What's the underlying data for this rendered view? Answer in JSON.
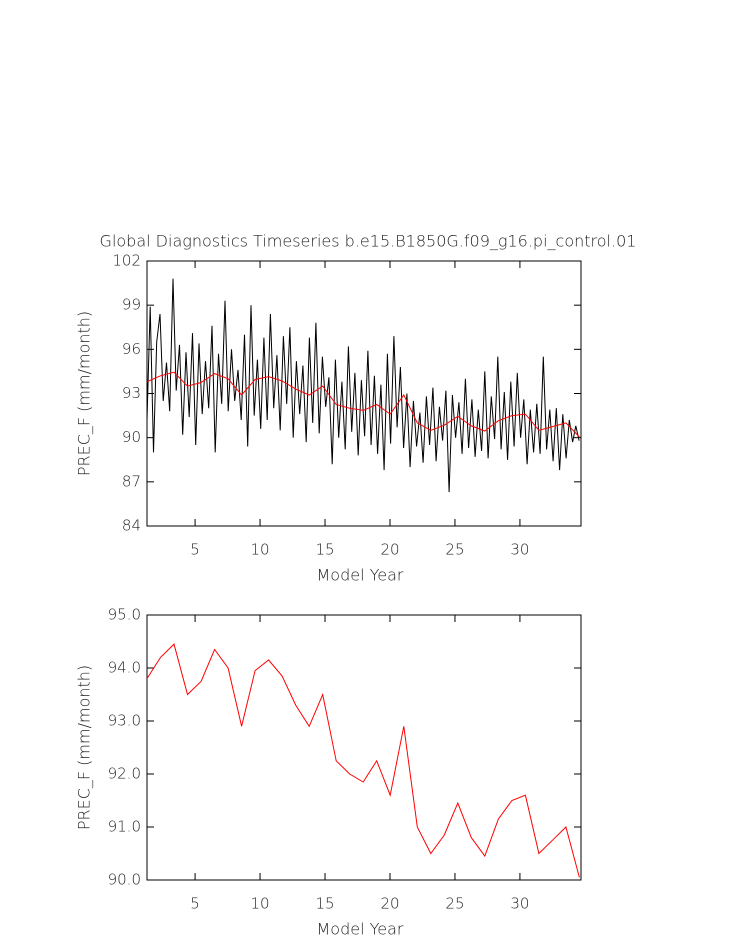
{
  "chart_data": [
    {
      "type": "line",
      "title": "Global Diagnostics Timeseries b.e15.B1850G.f09_g16.pi_control.01",
      "xlabel": "Model Year",
      "ylabel": "PREC_F (mm/month)",
      "xlim": [
        1.3,
        34.7
      ],
      "xticks": [
        5,
        10,
        15,
        20,
        25,
        30
      ],
      "ylim": [
        84,
        102
      ],
      "yticks": [
        84,
        87,
        90,
        93,
        96,
        99,
        102
      ],
      "series": [
        {
          "color": "#000000",
          "x": [
            1.3,
            1.55,
            1.8,
            2.05,
            2.3,
            2.55,
            2.8,
            3.05,
            3.3,
            3.55,
            3.8,
            4.05,
            4.3,
            4.55,
            4.8,
            5.05,
            5.3,
            5.55,
            5.8,
            6.05,
            6.3,
            6.55,
            6.8,
            7.05,
            7.3,
            7.55,
            7.8,
            8.05,
            8.3,
            8.55,
            8.8,
            9.05,
            9.3,
            9.55,
            9.8,
            10.05,
            10.3,
            10.55,
            10.8,
            11.05,
            11.3,
            11.55,
            11.8,
            12.05,
            12.3,
            12.55,
            12.8,
            13.05,
            13.3,
            13.55,
            13.8,
            14.05,
            14.3,
            14.55,
            14.8,
            15.05,
            15.3,
            15.55,
            15.8,
            16.05,
            16.3,
            16.55,
            16.8,
            17.05,
            17.3,
            17.55,
            17.8,
            18.05,
            18.3,
            18.55,
            18.8,
            19.05,
            19.3,
            19.55,
            19.8,
            20.05,
            20.3,
            20.55,
            20.8,
            21.05,
            21.3,
            21.55,
            21.8,
            22.05,
            22.3,
            22.55,
            22.8,
            23.05,
            23.3,
            23.55,
            23.8,
            24.05,
            24.3,
            24.55,
            24.8,
            25.05,
            25.3,
            25.55,
            25.8,
            26.05,
            26.3,
            26.55,
            26.8,
            27.05,
            27.3,
            27.55,
            27.8,
            28.05,
            28.3,
            28.55,
            28.8,
            29.05,
            29.3,
            29.55,
            29.8,
            30.05,
            30.3,
            30.55,
            30.8,
            31.05,
            31.3,
            31.55,
            31.8,
            32.05,
            32.3,
            32.55,
            32.8,
            33.05,
            33.3,
            33.55,
            33.8,
            34.05,
            34.3,
            34.55
          ],
          "values": [
            91.2,
            98.9,
            89.0,
            96.5,
            98.4,
            92.5,
            95.1,
            91.8,
            100.8,
            93.2,
            96.3,
            90.2,
            95.8,
            91.4,
            97.1,
            89.5,
            96.4,
            91.6,
            95.2,
            92.0,
            97.6,
            89.0,
            95.7,
            92.3,
            99.3,
            91.8,
            96.0,
            92.5,
            94.6,
            91.2,
            97.0,
            89.4,
            99.0,
            91.5,
            95.3,
            90.6,
            96.8,
            91.2,
            98.4,
            92.0,
            95.6,
            90.5,
            96.9,
            92.3,
            97.5,
            90.0,
            95.2,
            91.6,
            94.9,
            89.7,
            96.8,
            91.0,
            97.8,
            90.3,
            95.5,
            92.1,
            94.1,
            88.2,
            95.3,
            90.0,
            93.8,
            89.2,
            96.2,
            90.4,
            94.4,
            88.8,
            93.9,
            90.1,
            95.9,
            89.5,
            94.2,
            88.9,
            93.6,
            87.8,
            95.7,
            89.6,
            96.9,
            90.7,
            94.8,
            89.3,
            93.0,
            88.0,
            92.5,
            89.4,
            91.7,
            88.3,
            92.8,
            89.5,
            93.4,
            88.4,
            92.1,
            89.8,
            93.2,
            86.3,
            92.9,
            90.0,
            92.4,
            88.9,
            94.0,
            89.3,
            92.6,
            88.7,
            91.9,
            89.1,
            94.5,
            88.6,
            92.8,
            89.9,
            95.5,
            89.2,
            93.1,
            88.5,
            93.8,
            89.4,
            94.4,
            90.0,
            92.6,
            88.2,
            91.9,
            89.0,
            92.3,
            88.9,
            95.5,
            89.2,
            91.9,
            88.4,
            92.0,
            87.8,
            91.6,
            88.6,
            91.2,
            89.7,
            90.8,
            89.8
          ]
        },
        {
          "color": "#ff0000",
          "x": [
            1.3,
            2.34,
            3.38,
            4.42,
            5.46,
            6.5,
            7.54,
            8.58,
            9.62,
            10.66,
            11.7,
            12.74,
            13.78,
            14.82,
            15.86,
            16.9,
            17.94,
            18.98,
            20.02,
            21.06,
            22.1,
            23.14,
            24.18,
            25.22,
            26.26,
            27.3,
            28.34,
            29.38,
            30.42,
            31.46,
            32.5,
            33.54,
            34.58
          ],
          "values": [
            93.8,
            94.2,
            94.45,
            93.5,
            93.75,
            94.35,
            94.0,
            92.9,
            93.95,
            94.15,
            93.85,
            93.3,
            92.9,
            93.5,
            92.25,
            92.0,
            91.85,
            92.25,
            91.6,
            92.9,
            91.0,
            90.5,
            90.85,
            91.45,
            90.8,
            90.45,
            91.15,
            91.5,
            91.6,
            90.5,
            90.75,
            91.0,
            90.05
          ]
        }
      ]
    },
    {
      "type": "line",
      "xlabel": "Model Year",
      "ylabel": "PREC_F (mm/month)",
      "xlim": [
        1.3,
        34.7
      ],
      "xticks": [
        5,
        10,
        15,
        20,
        25,
        30
      ],
      "ylim": [
        90,
        95
      ],
      "yticks": [
        {
          "value": 90,
          "label": "90.0"
        },
        {
          "value": 91,
          "label": "91.0"
        },
        {
          "value": 92,
          "label": "92.0"
        },
        {
          "value": 93,
          "label": "93.0"
        },
        {
          "value": 94,
          "label": "94.0"
        },
        {
          "value": 95,
          "label": "95.0"
        }
      ],
      "series": [
        {
          "color": "#ff0000",
          "x": [
            1.3,
            2.34,
            3.38,
            4.42,
            5.46,
            6.5,
            7.54,
            8.58,
            9.62,
            10.66,
            11.7,
            12.74,
            13.78,
            14.82,
            15.86,
            16.9,
            17.94,
            18.98,
            20.02,
            21.06,
            22.1,
            23.14,
            24.18,
            25.22,
            26.26,
            27.3,
            28.34,
            29.38,
            30.42,
            31.46,
            32.5,
            33.54,
            34.58
          ],
          "values": [
            93.8,
            94.2,
            94.45,
            93.5,
            93.75,
            94.35,
            94.0,
            92.9,
            93.95,
            94.15,
            93.85,
            93.3,
            92.9,
            93.5,
            92.25,
            92.0,
            91.85,
            92.25,
            91.6,
            92.9,
            91.0,
            90.5,
            90.85,
            91.45,
            90.8,
            90.45,
            91.15,
            91.5,
            91.6,
            90.5,
            90.75,
            91.0,
            90.05
          ]
        }
      ]
    }
  ]
}
